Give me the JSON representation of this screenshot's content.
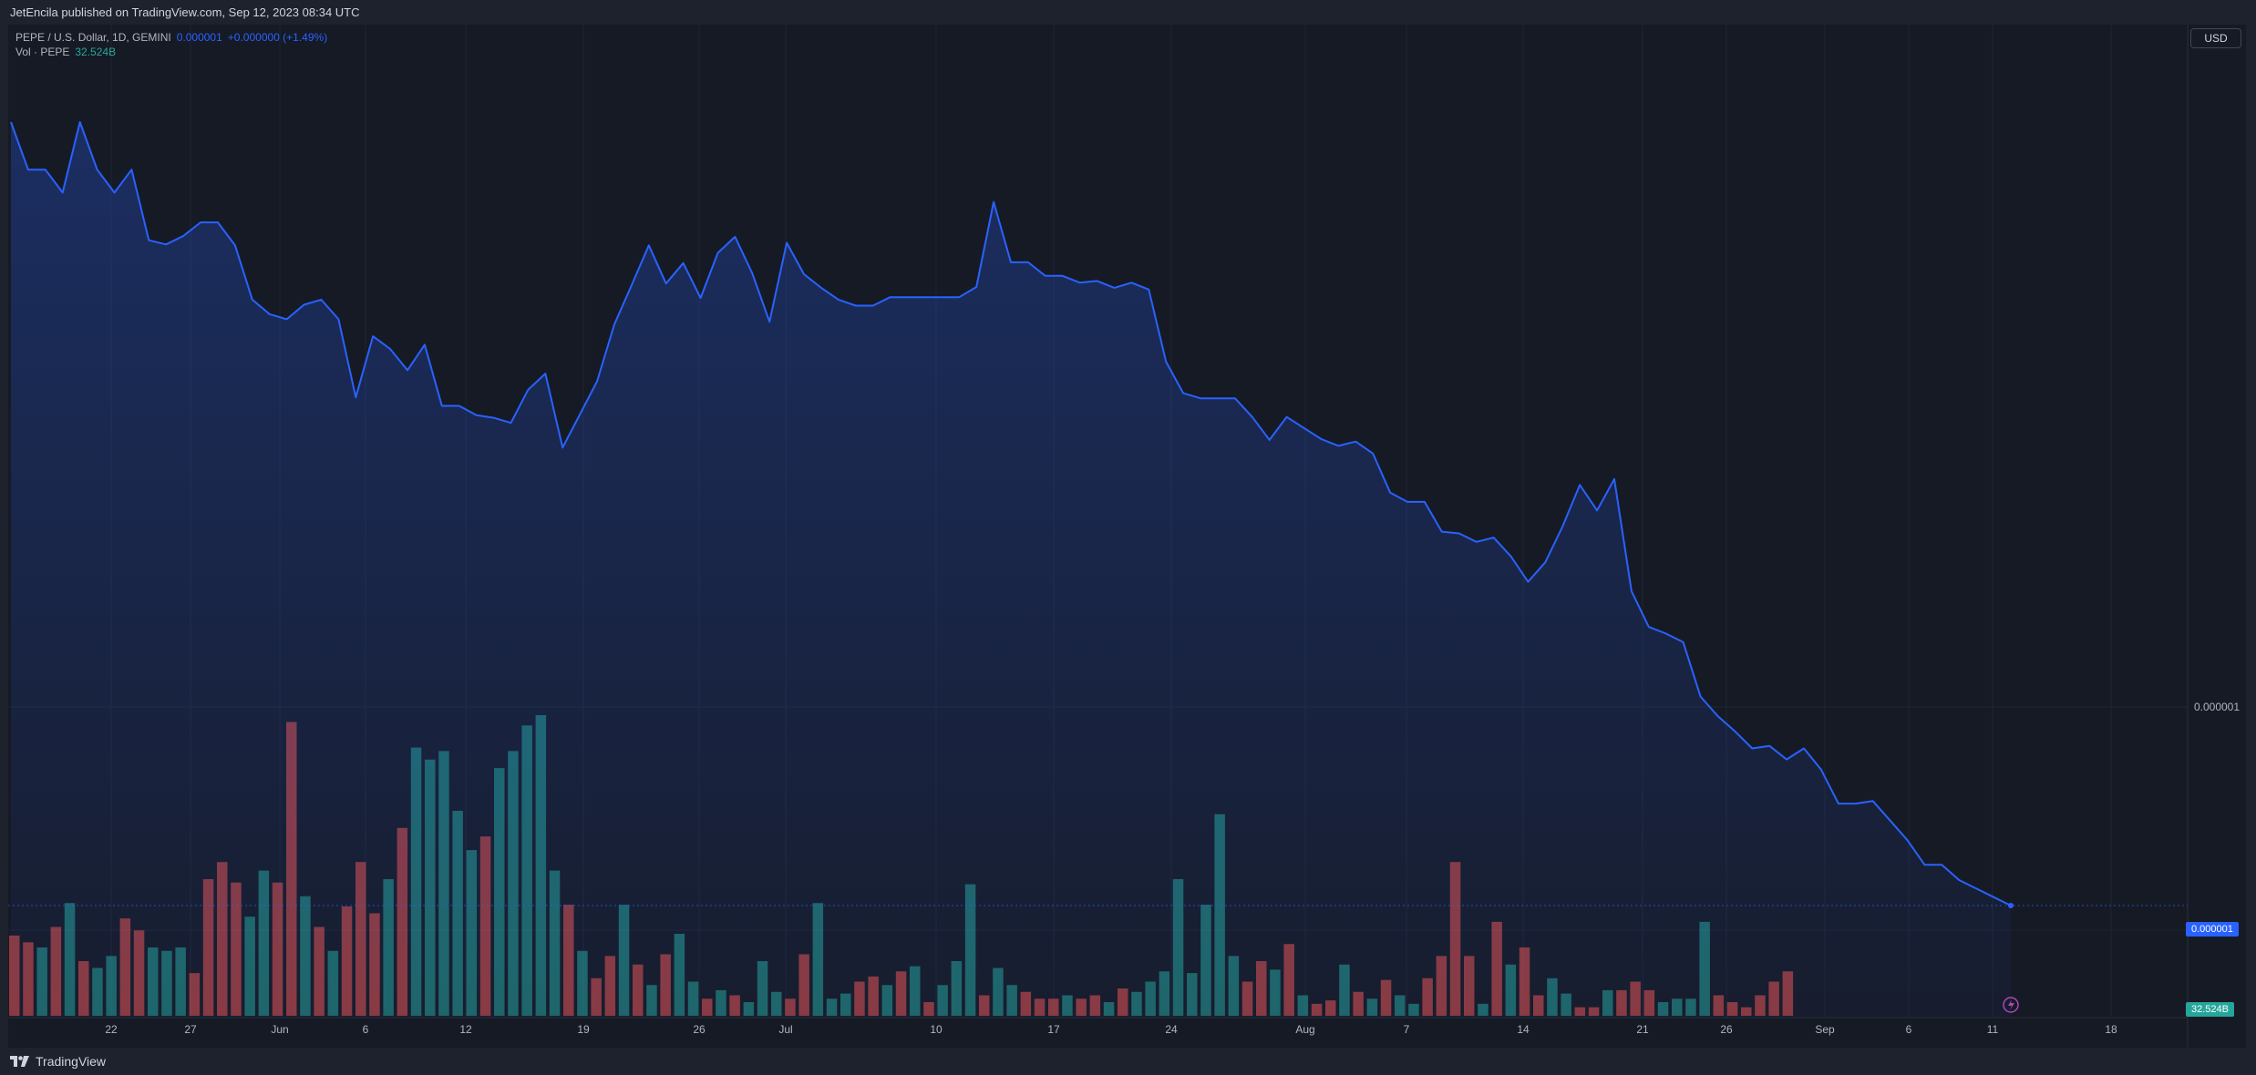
{
  "header": {
    "published_text": "JetEncila published on TradingView.com, Sep 12, 2023 08:34 UTC"
  },
  "legend": {
    "symbol": "PEPE / U.S. Dollar, 1D, GEMINI",
    "price": "0.000001",
    "change": "+0.000000 (+1.49%)",
    "volume_label": "Vol · PEPE",
    "volume_value": "32.524B"
  },
  "currency_button": "USD",
  "footer": {
    "brand": "TradingView"
  },
  "colors": {
    "line": "#2962ff",
    "volume_up": "#26a69a",
    "volume_down": "#ef5350",
    "background": "#161a25"
  },
  "chart_data": {
    "type": "area",
    "title": "PEPE / U.S. Dollar, 1D, GEMINI",
    "x_tick_labels": [
      "22",
      "27",
      "Jun",
      "6",
      "12",
      "19",
      "26",
      "Jul",
      "10",
      "17",
      "24",
      "Aug",
      "7",
      "14",
      "21",
      "26",
      "Sep",
      "6",
      "11",
      "18"
    ],
    "y_axis_labels": [
      "0.000001",
      "0.000001"
    ],
    "last_price_label": "0.000001",
    "last_volume_label": "32.524B",
    "price_index": [
      952,
      896,
      896,
      869,
      952,
      896,
      869,
      896,
      813,
      808,
      818,
      834,
      834,
      807,
      743,
      726,
      720,
      737,
      743,
      720,
      628,
      700,
      685,
      660,
      690,
      618,
      618,
      607,
      604,
      598,
      637,
      656,
      569,
      608,
      647,
      714,
      760,
      807,
      762,
      786,
      745,
      798,
      817,
      774,
      717,
      810,
      773,
      757,
      743,
      736,
      736,
      746,
      746,
      746,
      746,
      746,
      758,
      858,
      787,
      787,
      771,
      771,
      763,
      765,
      757,
      763,
      755,
      670,
      633,
      627,
      627,
      627,
      605,
      578,
      605,
      592,
      579,
      571,
      576,
      562,
      516,
      505,
      505,
      470,
      468,
      458,
      463,
      441,
      411,
      434,
      476,
      525,
      495,
      532,
      400,
      358,
      350,
      340,
      276,
      253,
      235,
      215,
      218,
      202,
      215,
      190,
      150,
      150,
      153,
      130,
      107,
      78,
      78,
      60,
      50,
      40,
      30
    ],
    "volume_index": [
      47,
      43,
      40,
      52,
      66,
      32,
      28,
      35,
      57,
      50,
      40,
      38,
      40,
      25,
      80,
      90,
      78,
      58,
      85,
      78,
      172,
      70,
      52,
      38,
      64,
      90,
      60,
      80,
      110,
      157,
      150,
      155,
      120,
      97,
      105,
      145,
      155,
      170,
      176,
      85,
      65,
      38,
      22,
      35,
      65,
      30,
      18,
      36,
      48,
      20,
      10,
      15,
      12,
      8,
      32,
      14,
      10,
      36,
      66,
      10,
      13,
      20,
      23,
      18,
      26,
      29,
      8,
      18,
      32,
      77,
      12,
      28,
      18,
      14,
      10,
      10,
      12,
      10,
      12,
      8,
      16,
      14,
      20,
      26,
      80,
      25,
      65,
      118,
      35,
      20,
      32,
      27,
      42,
      12,
      7,
      9,
      30,
      14,
      10,
      21,
      12,
      7,
      22,
      35,
      90,
      35,
      7,
      55,
      30,
      40,
      12,
      22,
      13,
      5,
      5,
      15,
      15,
      20,
      15,
      8,
      10,
      10,
      55,
      12,
      8,
      5,
      12,
      20,
      26
    ],
    "volume_direction": [
      "d",
      "d",
      "u",
      "d",
      "u",
      "d",
      "u",
      "u",
      "d",
      "d",
      "u",
      "u",
      "u",
      "d",
      "d",
      "d",
      "d",
      "u",
      "u",
      "d",
      "d",
      "u",
      "d",
      "u",
      "d",
      "d",
      "d",
      "u",
      "d",
      "u",
      "u",
      "u",
      "u",
      "u",
      "d",
      "u",
      "u",
      "u",
      "u",
      "u",
      "d",
      "u",
      "d",
      "d",
      "u",
      "d",
      "u",
      "d",
      "u",
      "u",
      "d",
      "u",
      "d",
      "u",
      "u",
      "u",
      "d",
      "d",
      "u",
      "u",
      "u",
      "d",
      "d",
      "u",
      "d",
      "u",
      "d",
      "u",
      "u",
      "u",
      "d",
      "u",
      "u",
      "d",
      "d",
      "d",
      "u",
      "d",
      "d",
      "u",
      "d",
      "u",
      "u",
      "u",
      "u",
      "u",
      "u",
      "u",
      "u",
      "d",
      "d",
      "u",
      "d",
      "u",
      "d",
      "d",
      "u",
      "d",
      "u",
      "d",
      "u",
      "u",
      "d",
      "d",
      "d",
      "d",
      "u",
      "d",
      "u",
      "d",
      "d",
      "u",
      "u",
      "d",
      "d",
      "u",
      "d",
      "d",
      "d",
      "u",
      "u",
      "u",
      "u",
      "d",
      "d",
      "d",
      "d",
      "d",
      "d"
    ],
    "volume_last_index": 1,
    "grid": true,
    "legend_position": "top-left"
  }
}
